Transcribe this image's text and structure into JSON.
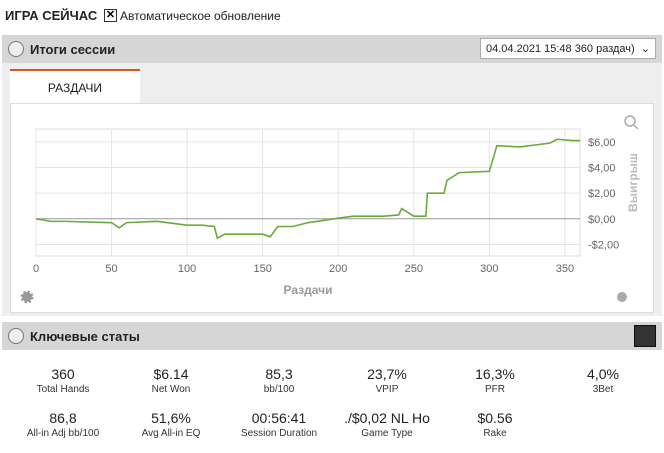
{
  "header": {
    "title": "ИГРА СЕЙЧАС",
    "auto_update": "Автоматическое обновление"
  },
  "session": {
    "title": "Итоги сессии",
    "selector": "04.04.2021 15:48 360 раздач)",
    "tab": "РАЗДАЧИ"
  },
  "chart_data": {
    "type": "line",
    "x_label": "Раздачи",
    "y_label": "Выигрыш",
    "x": [
      0,
      5,
      10,
      20,
      50,
      55,
      60,
      80,
      100,
      110,
      118,
      120,
      125,
      150,
      155,
      160,
      170,
      180,
      200,
      210,
      230,
      240,
      242,
      250,
      258,
      259,
      262,
      270,
      272,
      280,
      300,
      305,
      320,
      340,
      345,
      355,
      360
    ],
    "series": [
      {
        "color": "#6aaa3a",
        "values": [
          0,
          -0.1,
          -0.2,
          -0.2,
          -0.3,
          -0.7,
          -0.3,
          -0.2,
          -0.5,
          -0.5,
          -0.6,
          -1.5,
          -1.2,
          -1.2,
          -1.4,
          -0.6,
          -0.6,
          -0.3,
          0.05,
          0.2,
          0.2,
          0.3,
          0.8,
          0.2,
          0.2,
          2.0,
          2.0,
          2.0,
          3.0,
          3.6,
          3.7,
          5.7,
          5.6,
          5.9,
          6.2,
          6.1,
          6.1
        ]
      }
    ],
    "xlim": [
      0,
      360
    ],
    "xticks": [
      0,
      50,
      100,
      150,
      200,
      250,
      300,
      350
    ],
    "ylim": [
      -2.9,
      7
    ],
    "yticks": [
      {
        "value": -2,
        "label": "-$2,00"
      },
      {
        "value": 0,
        "label": "$0,00"
      },
      {
        "value": 2,
        "label": "$2,00"
      },
      {
        "value": 4,
        "label": "$4,00"
      },
      {
        "value": 6,
        "label": "$6,00"
      }
    ],
    "grid": true
  },
  "stats": {
    "title": "Ключевые статы",
    "items": [
      {
        "value": "360",
        "label": "Total Hands"
      },
      {
        "value": "$6.14",
        "label": "Net Won"
      },
      {
        "value": "85,3",
        "label": "bb/100"
      },
      {
        "value": "23,7%",
        "label": "VPIP"
      },
      {
        "value": "16,3%",
        "label": "PFR"
      },
      {
        "value": "4,0%",
        "label": "3Bet"
      },
      {
        "value": "86,8",
        "label": "All-in Adj bb/100"
      },
      {
        "value": "51,6%",
        "label": "Avg All-in EQ"
      },
      {
        "value": "00:56:41",
        "label": "Session Duration"
      },
      {
        "value": "./$0,02 NL Ho",
        "label": "Game Type"
      },
      {
        "value": "$0.56",
        "label": "Rake"
      }
    ]
  }
}
